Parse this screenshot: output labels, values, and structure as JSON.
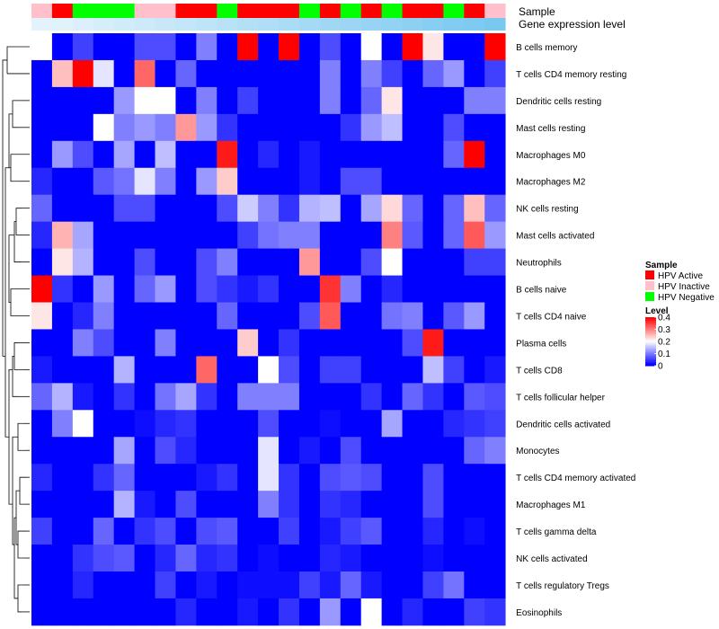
{
  "chart_data": {
    "type": "heatmap",
    "annotation_tracks": [
      "Sample",
      "Gene expression level"
    ],
    "sample_groups": [
      "Inactive",
      "Active",
      "Negative",
      "Negative",
      "Negative",
      "Inactive",
      "Inactive",
      "Active",
      "Active",
      "Negative",
      "Active",
      "Active",
      "Active",
      "Negative",
      "Active",
      "Negative",
      "Active",
      "Negative",
      "Active",
      "Active",
      "Negative",
      "Active",
      "Inactive"
    ],
    "gene_expression": [
      0.02,
      0.05,
      0.09,
      0.13,
      0.17,
      0.21,
      0.25,
      0.29,
      0.33,
      0.37,
      0.41,
      0.45,
      0.49,
      0.53,
      0.57,
      0.61,
      0.65,
      0.69,
      0.73,
      0.77,
      0.81,
      0.85,
      0.9
    ],
    "rows": [
      {
        "name": "B cells memory",
        "values": [
          0.2,
          0,
          0.05,
          0,
          0,
          0.06,
          0.06,
          0,
          0.1,
          0,
          0.4,
          0,
          0.4,
          0,
          0.06,
          0,
          0.2,
          0,
          0.4,
          0.22,
          0,
          0,
          0.4
        ]
      },
      {
        "name": "T cells CD4 memory resting",
        "values": [
          0,
          0.25,
          0.4,
          0.18,
          0,
          0.32,
          0,
          0.08,
          0,
          0,
          0,
          0,
          0,
          0,
          0.1,
          0,
          0.1,
          0.05,
          0,
          0.08,
          0.12,
          0,
          0.05
        ]
      },
      {
        "name": "Dendritic cells resting",
        "values": [
          0,
          0,
          0,
          0,
          0.12,
          0.2,
          0.2,
          0,
          0.1,
          0,
          0.05,
          0,
          0,
          0,
          0.1,
          0,
          0.08,
          0.22,
          0,
          0,
          0,
          0.1,
          0.1
        ]
      },
      {
        "name": "Mast cells resting",
        "values": [
          0,
          0,
          0,
          0.2,
          0.1,
          0.12,
          0.1,
          0.28,
          0.12,
          0.04,
          0,
          0,
          0,
          0,
          0,
          0.04,
          0.12,
          0.15,
          0,
          0,
          0.06,
          0,
          0
        ]
      },
      {
        "name": "Macrophages M0",
        "values": [
          0,
          0.12,
          0.06,
          0,
          0.13,
          0,
          0.15,
          0,
          0,
          0.38,
          0,
          0.03,
          0,
          0.02,
          0,
          0,
          0,
          0,
          0,
          0,
          0.08,
          0.4,
          0
        ]
      },
      {
        "name": "Macrophages M2",
        "values": [
          0.03,
          0,
          0,
          0.07,
          0.09,
          0.18,
          0.1,
          0,
          0.12,
          0.24,
          0,
          0,
          0,
          0.02,
          0,
          0.06,
          0.06,
          0,
          0,
          0,
          0,
          0,
          0
        ]
      },
      {
        "name": "NK cells resting",
        "values": [
          0.08,
          0,
          0,
          0,
          0.06,
          0.06,
          0,
          0,
          0,
          0.06,
          0.16,
          0.1,
          0.04,
          0.14,
          0.15,
          0,
          0.13,
          0.23,
          0.08,
          0,
          0.08,
          0.25,
          0.08
        ]
      },
      {
        "name": "Mast cells activated",
        "values": [
          0.03,
          0.26,
          0.13,
          0,
          0,
          0,
          0,
          0,
          0,
          0,
          0.05,
          0.09,
          0.1,
          0.1,
          0,
          0,
          0,
          0.3,
          0.07,
          0,
          0.08,
          0.33,
          0.12
        ]
      },
      {
        "name": "Neutrophils",
        "values": [
          0,
          0.22,
          0.14,
          0,
          0,
          0.06,
          0,
          0,
          0.06,
          0.1,
          0,
          0,
          0,
          0.28,
          0,
          0,
          0.06,
          0.2,
          0,
          0,
          0,
          0.05,
          0.05
        ]
      },
      {
        "name": "B cells naive",
        "values": [
          0.4,
          0.04,
          0,
          0.12,
          0,
          0.08,
          0.12,
          0,
          0.06,
          0.04,
          0.02,
          0.04,
          0,
          0,
          0.36,
          0.1,
          0,
          0.03,
          0,
          0,
          0,
          0,
          0
        ]
      },
      {
        "name": "T cells CD4 naive",
        "values": [
          0.22,
          0,
          0.03,
          0.1,
          0,
          0,
          0,
          0,
          0,
          0.08,
          0,
          0,
          0,
          0.06,
          0.33,
          0,
          0,
          0.09,
          0.1,
          0,
          0.07,
          0.12,
          0
        ]
      },
      {
        "name": "Plasma cells",
        "values": [
          0,
          0,
          0.1,
          0.06,
          0,
          0,
          0.1,
          0,
          0,
          0,
          0.24,
          0,
          0.04,
          0,
          0,
          0,
          0,
          0,
          0.06,
          0.38,
          0,
          0,
          0
        ]
      },
      {
        "name": "T cells CD8",
        "values": [
          0.02,
          0,
          0,
          0,
          0.14,
          0,
          0,
          0,
          0.32,
          0,
          0,
          0.2,
          0.06,
          0,
          0.05,
          0.05,
          0,
          0,
          0,
          0.15,
          0.05,
          0,
          0.02
        ]
      },
      {
        "name": "T cells follicular helper",
        "values": [
          0.08,
          0.14,
          0.02,
          0,
          0.04,
          0,
          0.09,
          0.13,
          0.04,
          0,
          0.1,
          0.1,
          0.1,
          0,
          0,
          0,
          0.04,
          0,
          0.08,
          0.04,
          0,
          0.07,
          0.06
        ]
      },
      {
        "name": "Dendritic cells activated",
        "values": [
          0,
          0.1,
          0.2,
          0,
          0,
          0.01,
          0.03,
          0.04,
          0,
          0,
          0,
          0.06,
          0,
          0,
          0.01,
          0,
          0,
          0.13,
          0,
          0,
          0.03,
          0.04,
          0.05
        ]
      },
      {
        "name": "Monocytes",
        "values": [
          0,
          0,
          0,
          0,
          0.13,
          0,
          0.06,
          0.03,
          0,
          0,
          0,
          0.18,
          0,
          0.02,
          0,
          0.06,
          0,
          0,
          0,
          0,
          0,
          0.08,
          0.1
        ]
      },
      {
        "name": "T cells CD4 memory activated",
        "values": [
          0.03,
          0,
          0,
          0.04,
          0.08,
          0,
          0,
          0,
          0.02,
          0.04,
          0,
          0.18,
          0.04,
          0,
          0.06,
          0.07,
          0.06,
          0,
          0,
          0.06,
          0,
          0,
          0
        ]
      },
      {
        "name": "Macrophages M1",
        "values": [
          0,
          0,
          0,
          0,
          0.14,
          0.02,
          0,
          0.06,
          0,
          0,
          0,
          0.1,
          0.04,
          0,
          0.04,
          0.03,
          0,
          0,
          0,
          0.06,
          0,
          0,
          0
        ]
      },
      {
        "name": "T cells gamma delta",
        "values": [
          0.05,
          0,
          0,
          0.08,
          0,
          0.04,
          0.06,
          0,
          0.06,
          0.07,
          0,
          0,
          0.05,
          0,
          0.02,
          0.05,
          0.07,
          0,
          0,
          0.03,
          0,
          0.01,
          0
        ]
      },
      {
        "name": "NK cells activated",
        "values": [
          0,
          0,
          0.04,
          0.06,
          0.07,
          0,
          0.03,
          0.08,
          0.03,
          0.04,
          0,
          0.01,
          0,
          0,
          0.03,
          0.02,
          0,
          0,
          0,
          0.01,
          0,
          0,
          0
        ]
      },
      {
        "name": "T cells regulatory  Tregs",
        "values": [
          0,
          0,
          0.03,
          0,
          0,
          0,
          0.05,
          0,
          0.02,
          0,
          0.01,
          0.01,
          0.01,
          0.05,
          0.02,
          0.08,
          0.02,
          0,
          0,
          0.05,
          0.09,
          0,
          0
        ]
      },
      {
        "name": "Eosinophils",
        "values": [
          0,
          0,
          0,
          0,
          0,
          0,
          0,
          0.03,
          0,
          0,
          0.02,
          0,
          0.04,
          0,
          0.12,
          0,
          0.2,
          0,
          0.03,
          0,
          0,
          0.05,
          0.04
        ]
      }
    ],
    "color_scale": {
      "min": 0,
      "max": 0.4,
      "low": "#0000ff",
      "mid": "#ffffff",
      "high": "#ff0000"
    },
    "sample_colors": {
      "Active": "#ff0000",
      "Inactive": "#ffc0cb",
      "Negative": "#00ff00"
    },
    "legends": {
      "sample": {
        "title": "Sample",
        "items": [
          {
            "key": "Active",
            "label": "HPV Active"
          },
          {
            "key": "Inactive",
            "label": "HPV Inactive"
          },
          {
            "key": "Negative",
            "label": "HPV Negative"
          }
        ]
      },
      "level": {
        "title": "Level",
        "ticks": [
          0.4,
          0.3,
          0.2,
          0.1,
          0
        ],
        "tick_labels": [
          "0.4",
          "0.3",
          "0.2",
          "0.1",
          "0"
        ]
      }
    },
    "gene_expr_colors": {
      "low": "#e6f4fb",
      "high": "#6cc3ef"
    },
    "row_dendrogram": true
  }
}
